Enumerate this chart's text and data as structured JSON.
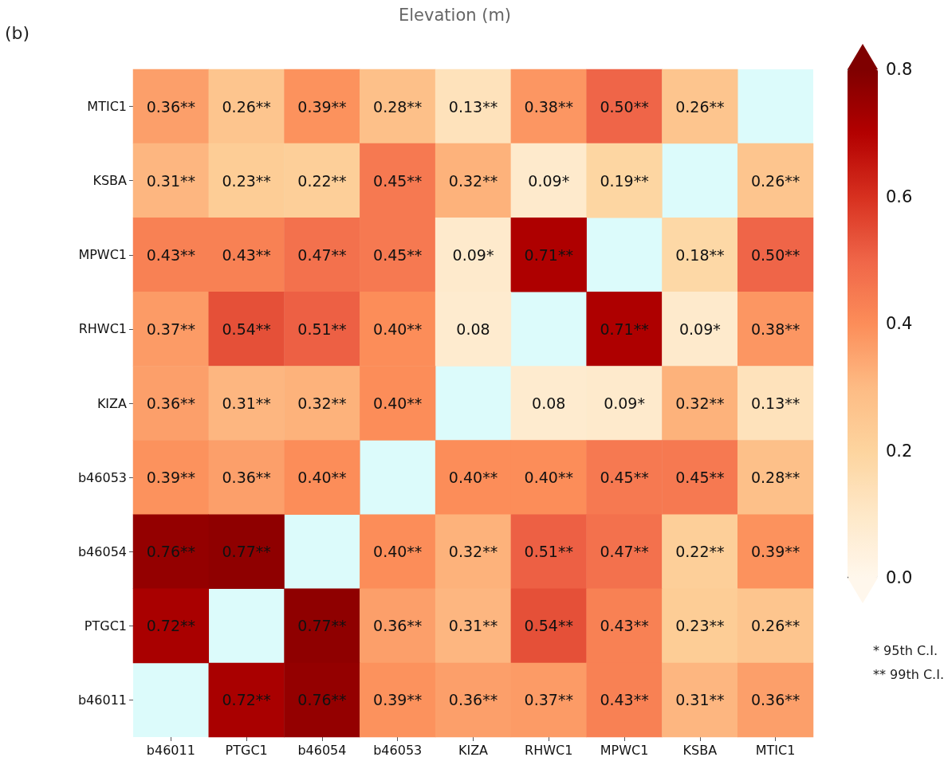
{
  "chart_data": {
    "type": "heatmap",
    "title": "Elevation (m)",
    "annotations": [
      "(b)",
      "* 95th C.I.",
      "** 99th C.I."
    ],
    "categories": [
      "b46011",
      "PTGC1",
      "b46054",
      "b46053",
      "KIZA",
      "RHWC1",
      "MPWC1",
      "KSBA",
      "MTIC1"
    ],
    "y_categories": [
      "MTIC1",
      "KSBA",
      "MPWC1",
      "RHWC1",
      "KIZA",
      "b46053",
      "b46054",
      "PTGC1",
      "b46011"
    ],
    "cells": [
      [
        0.36,
        0.26,
        0.39,
        0.28,
        0.13,
        0.38,
        0.5,
        0.26,
        null
      ],
      [
        0.31,
        0.23,
        0.22,
        0.45,
        0.32,
        0.09,
        0.19,
        null,
        0.26
      ],
      [
        0.43,
        0.43,
        0.47,
        0.45,
        0.09,
        0.71,
        null,
        0.18,
        0.5
      ],
      [
        0.37,
        0.54,
        0.51,
        0.4,
        0.08,
        null,
        0.71,
        0.09,
        0.38
      ],
      [
        0.36,
        0.31,
        0.32,
        0.4,
        null,
        0.08,
        0.09,
        0.32,
        0.13
      ],
      [
        0.39,
        0.36,
        0.4,
        null,
        0.4,
        0.4,
        0.45,
        0.45,
        0.28
      ],
      [
        0.76,
        0.77,
        null,
        0.4,
        0.32,
        0.51,
        0.47,
        0.22,
        0.39
      ],
      [
        0.72,
        null,
        0.77,
        0.36,
        0.31,
        0.54,
        0.43,
        0.23,
        0.26
      ],
      [
        null,
        0.72,
        0.76,
        0.39,
        0.36,
        0.37,
        0.43,
        0.31,
        0.36
      ]
    ],
    "cell_labels": [
      [
        "0.36**",
        "0.26**",
        "0.39**",
        "0.28**",
        "0.13**",
        "0.38**",
        "0.50**",
        "0.26**",
        null
      ],
      [
        "0.31**",
        "0.23**",
        "0.22**",
        "0.45**",
        "0.32**",
        "0.09*",
        "0.19**",
        null,
        "0.26**"
      ],
      [
        "0.43**",
        "0.43**",
        "0.47**",
        "0.45**",
        "0.09*",
        "0.71**",
        null,
        "0.18**",
        "0.50**"
      ],
      [
        "0.37**",
        "0.54**",
        "0.51**",
        "0.40**",
        "0.08",
        null,
        "0.71**",
        "0.09*",
        "0.38**"
      ],
      [
        "0.36**",
        "0.31**",
        "0.32**",
        "0.40**",
        null,
        "0.08",
        "0.09*",
        "0.32**",
        "0.13**"
      ],
      [
        "0.39**",
        "0.36**",
        "0.40**",
        null,
        "0.40**",
        "0.40**",
        "0.45**",
        "0.45**",
        "0.28**"
      ],
      [
        "0.76**",
        "0.77**",
        null,
        "0.40**",
        "0.32**",
        "0.51**",
        "0.47**",
        "0.22**",
        "0.39**"
      ],
      [
        "0.72**",
        null,
        "0.77**",
        "0.36**",
        "0.31**",
        "0.54**",
        "0.43**",
        "0.23**",
        "0.26**"
      ],
      [
        null,
        "0.72**",
        "0.76**",
        "0.39**",
        "0.36**",
        "0.37**",
        "0.43**",
        "0.31**",
        "0.36**"
      ]
    ],
    "clim": [
      0,
      0.8
    ],
    "cticks": [
      {
        "value": 0,
        "label": "0.0"
      },
      {
        "value": 0.2,
        "label": "0.2"
      },
      {
        "value": 0.4,
        "label": "0.4"
      },
      {
        "value": 0.6,
        "label": "0.6"
      },
      {
        "value": 0.8,
        "label": "0.8"
      }
    ]
  }
}
